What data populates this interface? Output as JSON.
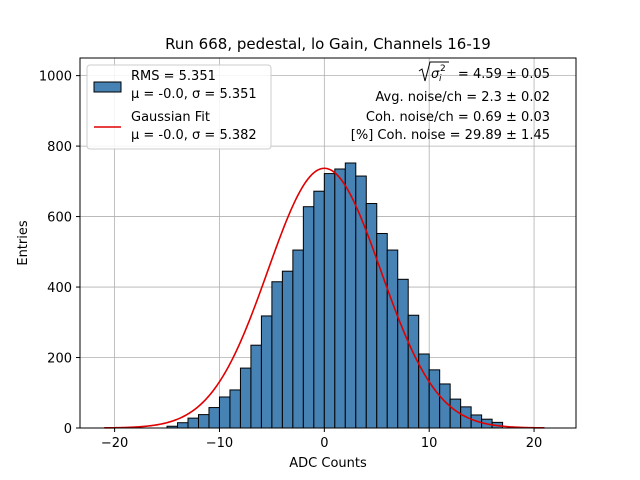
{
  "chart_data": {
    "type": "bar",
    "title": "Run 668, pedestal, lo Gain, Channels 16-19",
    "xlabel": "ADC Counts",
    "ylabel": "Entries",
    "xlim": [
      -23.3,
      24.0
    ],
    "ylim": [
      0,
      1050
    ],
    "xticks": [
      -20,
      -10,
      0,
      10,
      20
    ],
    "yticks": [
      0,
      200,
      400,
      600,
      800,
      1000
    ],
    "grid": true,
    "legend_position": "top-left",
    "bin_width": 1,
    "bins": {
      "left_edges": [
        -15,
        -14,
        -13,
        -12,
        -11,
        -10,
        -9,
        -8,
        -7,
        -6,
        -5,
        -4,
        -3,
        -2,
        -1,
        0,
        1,
        2,
        3,
        4,
        5,
        6,
        7,
        8,
        9,
        10,
        11,
        12,
        13,
        14,
        15,
        16
      ],
      "counts": [
        5,
        15,
        28,
        38,
        58,
        88,
        108,
        170,
        235,
        318,
        415,
        445,
        505,
        628,
        672,
        722,
        735,
        752,
        715,
        637,
        552,
        505,
        422,
        320,
        210,
        165,
        125,
        82,
        60,
        37,
        25,
        16
      ]
    },
    "series": [
      {
        "name": "RMS = 5.351",
        "label_line2": "μ = -0.0, σ = 5.351",
        "kind": "histogram",
        "color": "#4682b4",
        "edgecolor": "#000000"
      },
      {
        "name": "Gaussian Fit",
        "label_line2": "μ = -0.0, σ = 5.382",
        "kind": "gaussian_curve",
        "color": "#e00000",
        "mu": 0.0,
        "sigma": 5.382,
        "amplitude": 737,
        "x_range": [
          -21,
          21
        ]
      }
    ],
    "annotations": {
      "sqrt_value": " = 4.59 ± 0.05",
      "avg_noise": "Avg. noise/ch = 2.3 ± 0.02",
      "coh_noise": "Coh. noise/ch = 0.69 ± 0.03",
      "coh_percent": "[%] Coh. noise = 29.89 ± 1.45"
    }
  }
}
